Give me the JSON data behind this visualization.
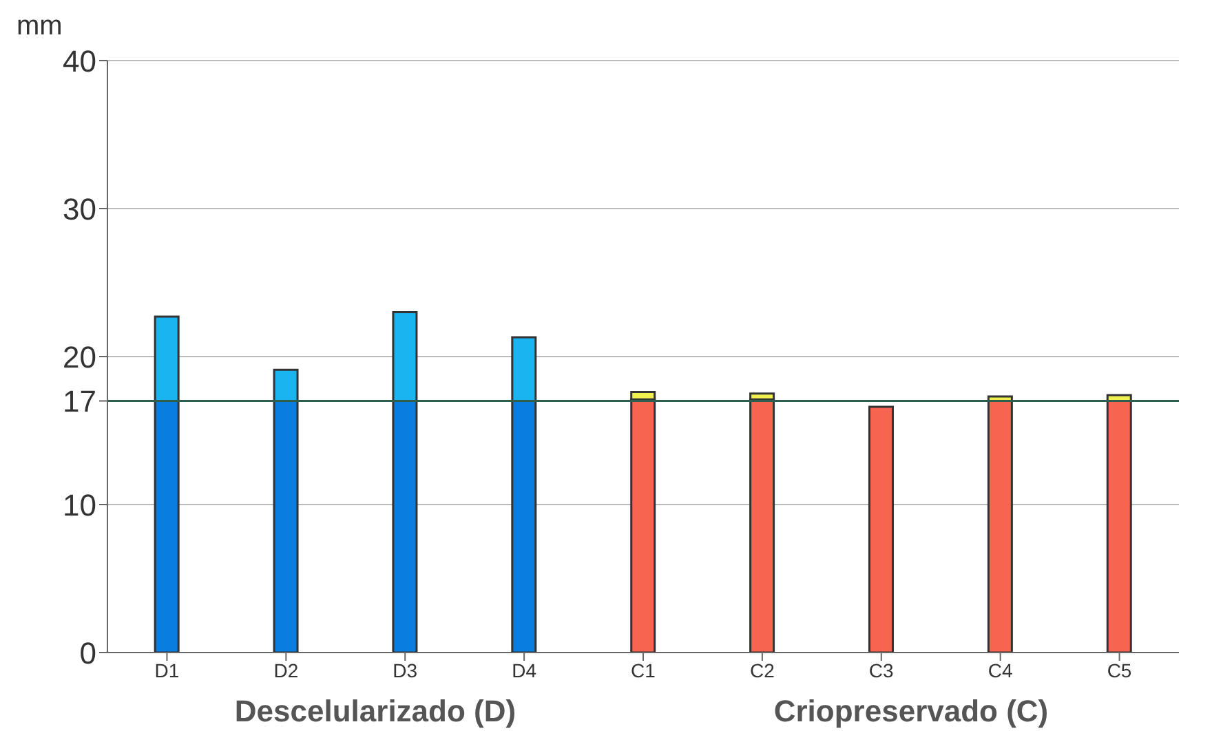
{
  "chart_data": {
    "type": "bar",
    "ylabel": "mm",
    "stacked": true,
    "categories": [
      "D1",
      "D2",
      "D3",
      "D4",
      "C1",
      "C2",
      "C3",
      "C4",
      "C5"
    ],
    "series": [
      {
        "colors": [
          "#0a7ee0",
          "#0a7ee0",
          "#0a7ee0",
          "#0a7ee0",
          "#f76450",
          "#f76450",
          "#f76450",
          "#f76450",
          "#f76450"
        ],
        "values": [
          17,
          17,
          17,
          17,
          17.1,
          17.1,
          16.6,
          17.0,
          17.0
        ]
      },
      {
        "colors": [
          "#1ab4f0",
          "#1ab4f0",
          "#1ab4f0",
          "#1ab4f0",
          "#f0f050",
          "#f0f050",
          "#f0f050",
          "#f0f050",
          "#f0f050"
        ],
        "values": [
          5.7,
          2.1,
          6.0,
          4.3,
          0.5,
          0.4,
          0,
          0.3,
          0.4
        ]
      }
    ],
    "ylim": [
      0,
      40
    ],
    "yticks": [
      0,
      10,
      17,
      20,
      30,
      40
    ],
    "grid": "y",
    "ref_lines": [
      {
        "axis": "y",
        "value": 17,
        "color": "#2e5e4e"
      }
    ],
    "annotations": [
      "Descelularizado (D)",
      "Criopreservado (C)"
    ],
    "legend": false
  }
}
